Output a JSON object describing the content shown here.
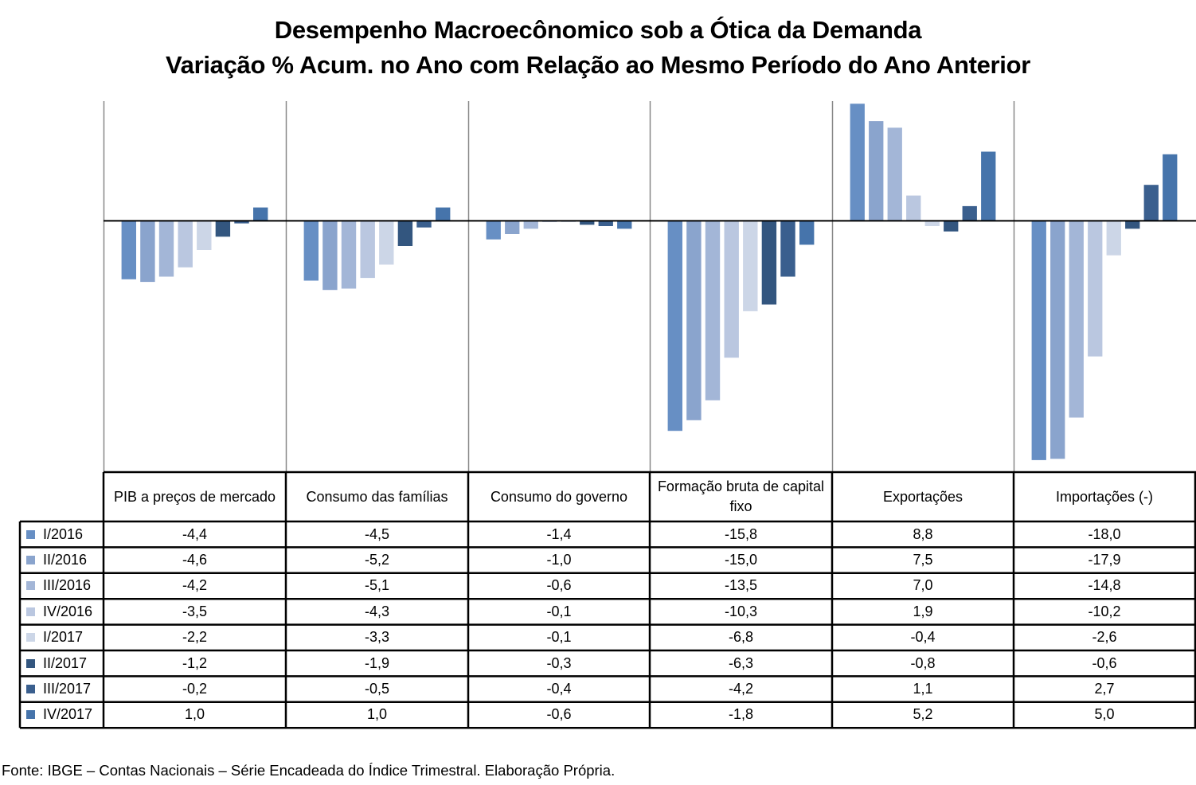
{
  "chart_data": {
    "type": "bar",
    "title": "Desempenho Macroecônomico sob a Ótica da Demanda",
    "subtitle": "Variação % Acum. no Ano com Relação ao Mesmo Período do Ano Anterior",
    "xlabel": "",
    "ylabel": "",
    "ylim": [
      -18.9,
      9.0
    ],
    "grid": false,
    "legend": "left (as data-table row headers)",
    "categories": [
      "PIB a preços de mercado",
      "Consumo das famílias",
      "Consumo do governo",
      "Formação bruta de capital fixo",
      "Exportações",
      "Importações (-)"
    ],
    "series": [
      {
        "name": "I/2016",
        "color": "#678FC4",
        "values": [
          -4.4,
          -4.5,
          -1.4,
          -15.8,
          8.8,
          -18.0
        ],
        "labels": [
          "-4,4",
          "-4,5",
          "-1,4",
          "-15,8",
          "8,8",
          "-18,0"
        ]
      },
      {
        "name": "II/2016",
        "color": "#8AA4CD",
        "values": [
          -4.6,
          -5.2,
          -1.0,
          -15.0,
          7.5,
          -17.9
        ],
        "labels": [
          "-4,6",
          "-5,2",
          "-1,0",
          "-15,0",
          "7,5",
          "-17,9"
        ]
      },
      {
        "name": "III/2016",
        "color": "#A3B6D7",
        "values": [
          -4.2,
          -5.1,
          -0.6,
          -13.5,
          7.0,
          -14.8
        ],
        "labels": [
          "-4,2",
          "-5,1",
          "-0,6",
          "-13,5",
          "7,0",
          "-14,8"
        ]
      },
      {
        "name": "IV/2016",
        "color": "#BAC7E0",
        "values": [
          -3.5,
          -4.3,
          -0.1,
          -10.3,
          1.9,
          -10.2
        ],
        "labels": [
          "-3,5",
          "-4,3",
          "-0,1",
          "-10,3",
          "1,9",
          "-10,2"
        ]
      },
      {
        "name": "I/2017",
        "color": "#CCD6E7",
        "values": [
          -2.2,
          -3.3,
          -0.1,
          -6.8,
          -0.4,
          -2.6
        ],
        "labels": [
          "-2,2",
          "-3,3",
          "-0,1",
          "-6,8",
          "-0,4",
          "-2,6"
        ]
      },
      {
        "name": "II/2017",
        "color": "#33567F",
        "values": [
          -1.2,
          -1.9,
          -0.3,
          -6.3,
          -0.8,
          -0.6
        ],
        "labels": [
          "-1,2",
          "-1,9",
          "-0,3",
          "-6,3",
          "-0,8",
          "-0,6"
        ]
      },
      {
        "name": "III/2017",
        "color": "#3A5F8E",
        "values": [
          -0.2,
          -0.5,
          -0.4,
          -4.2,
          1.1,
          2.7
        ],
        "labels": [
          "-0,2",
          "-0,5",
          "-0,4",
          "-4,2",
          "1,1",
          "2,7"
        ]
      },
      {
        "name": "IV/2017",
        "color": "#4674AB",
        "values": [
          1.0,
          1.0,
          -0.6,
          -1.8,
          5.2,
          5.0
        ],
        "labels": [
          "1,0",
          "1,0",
          "-0,6",
          "-1,8",
          "5,2",
          "5,0"
        ]
      }
    ]
  },
  "header": {
    "title": "Desempenho Macroecônomico sob a Ótica da Demanda",
    "subtitle": "Variação % Acum. no Ano com Relação ao Mesmo Período do Ano Anterior"
  },
  "footer": {
    "source": "Fonte: IBGE – Contas Nacionais – Série Encadeada do Índice Trimestral. Elaboração Própria."
  }
}
